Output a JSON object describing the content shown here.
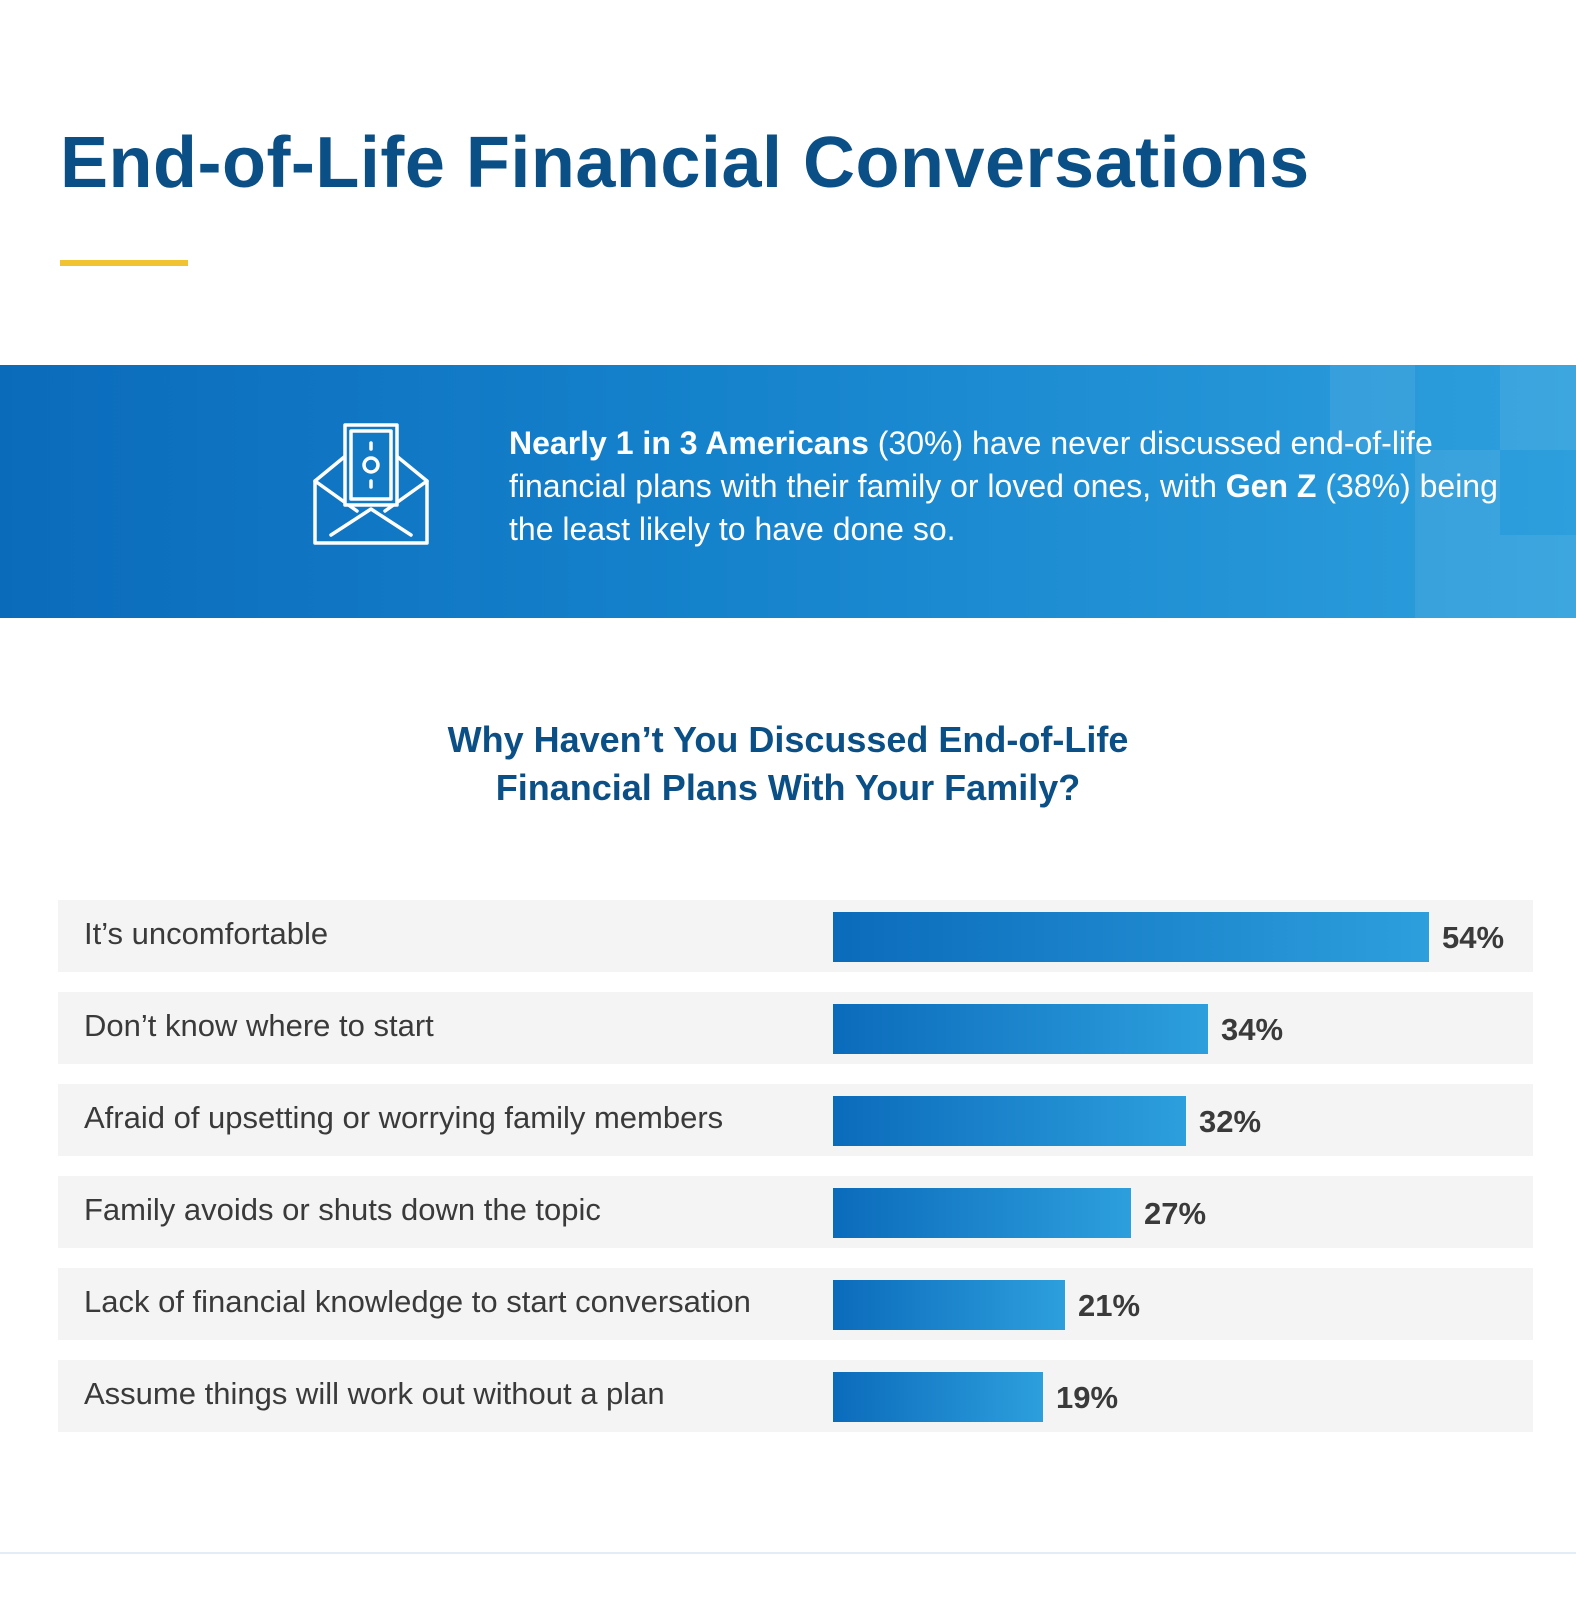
{
  "header": {
    "title": "End-of-Life Financial Conversations",
    "accent_color": "#f1c232"
  },
  "banner": {
    "icon": "envelope-money-icon",
    "seg1_bold": "Nearly 1 in 3 Americans",
    "seg2": " (30%) have never discussed end-of-life financial plans with their family or loved ones, with ",
    "seg3_bold": "Gen Z",
    "seg4": " (38%) being the least likely to have done so.",
    "colors": {
      "start": "#0b6bbb",
      "end": "#2d9fdd"
    }
  },
  "chart_data": {
    "type": "bar",
    "orientation": "horizontal",
    "title_line1": "Why Haven’t You Discussed End-of-Life",
    "title_line2": "Financial Plans With Your Family?",
    "categories": [
      "It’s uncomfortable",
      "Don’t know where to start",
      "Afraid of upsetting or worrying family members",
      "Family avoids or shuts down the topic",
      "Lack of financial knowledge to start conversation",
      "Assume things will work out without a plan"
    ],
    "values": [
      54,
      34,
      32,
      27,
      21,
      19
    ],
    "value_labels": [
      "54%",
      "34%",
      "32%",
      "27%",
      "21%",
      "19%"
    ],
    "unit": "%",
    "bar_color": "#1582cc"
  }
}
